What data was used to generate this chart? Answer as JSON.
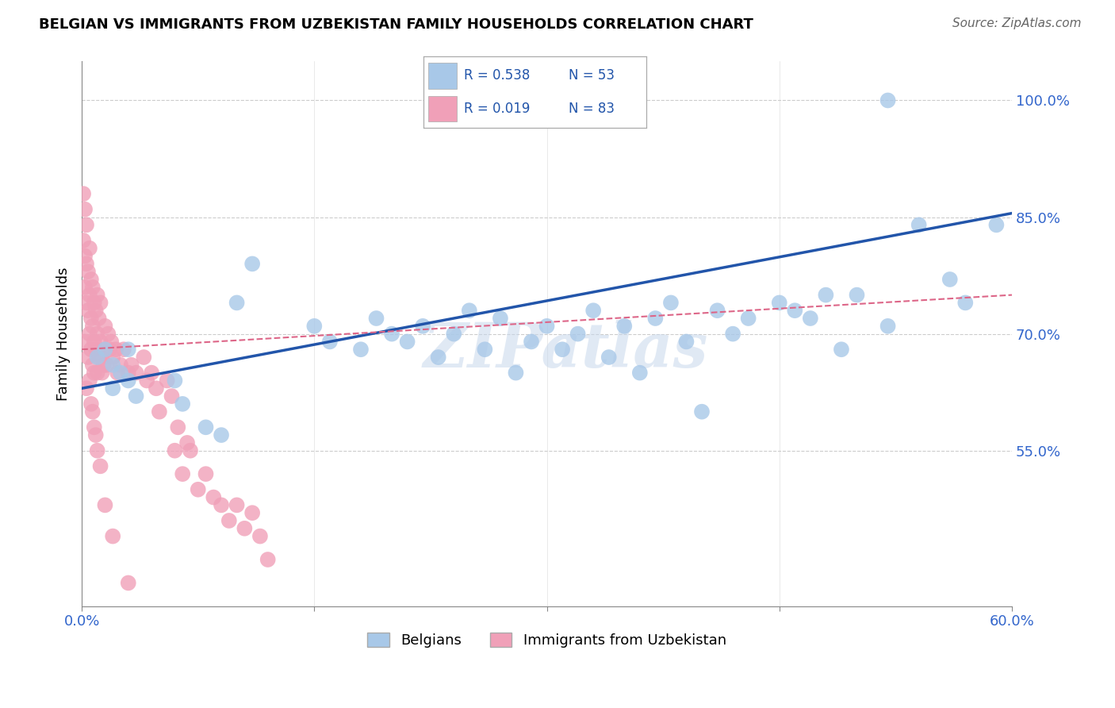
{
  "title": "BELGIAN VS IMMIGRANTS FROM UZBEKISTAN FAMILY HOUSEHOLDS CORRELATION CHART",
  "source": "Source: ZipAtlas.com",
  "ylabel": "Family Households",
  "xlim": [
    0.0,
    0.6
  ],
  "ylim": [
    0.35,
    1.05
  ],
  "y_ticks": [
    0.55,
    0.7,
    0.85,
    1.0
  ],
  "y_tick_labels": [
    "55.0%",
    "70.0%",
    "85.0%",
    "100.0%"
  ],
  "x_ticks": [
    0.0,
    0.15,
    0.3,
    0.45,
    0.6
  ],
  "x_tick_labels": [
    "0.0%",
    "",
    "",
    "",
    "60.0%"
  ],
  "legend_r1": "R = 0.538",
  "legend_n1": "N = 53",
  "legend_r2": "R = 0.019",
  "legend_n2": "N = 83",
  "blue_color": "#A8C8E8",
  "pink_color": "#F0A0B8",
  "line_blue": "#2255AA",
  "line_pink": "#DD6688",
  "watermark": "ZIPatlas",
  "bel_trend_x": [
    0.0,
    0.6
  ],
  "bel_trend_y": [
    0.63,
    0.855
  ],
  "uzb_trend_x": [
    0.0,
    0.6
  ],
  "uzb_trend_y": [
    0.68,
    0.75
  ],
  "belgians_x": [
    0.01,
    0.015,
    0.02,
    0.02,
    0.025,
    0.03,
    0.03,
    0.035,
    0.06,
    0.065,
    0.08,
    0.09,
    0.1,
    0.11,
    0.15,
    0.16,
    0.18,
    0.19,
    0.2,
    0.21,
    0.22,
    0.23,
    0.24,
    0.25,
    0.26,
    0.27,
    0.28,
    0.29,
    0.3,
    0.31,
    0.32,
    0.33,
    0.34,
    0.35,
    0.36,
    0.37,
    0.38,
    0.39,
    0.4,
    0.41,
    0.42,
    0.43,
    0.45,
    0.46,
    0.47,
    0.48,
    0.49,
    0.5,
    0.52,
    0.54,
    0.56,
    0.57,
    0.59
  ],
  "belgians_y": [
    0.67,
    0.68,
    0.63,
    0.66,
    0.65,
    0.64,
    0.68,
    0.62,
    0.64,
    0.61,
    0.58,
    0.57,
    0.74,
    0.79,
    0.71,
    0.69,
    0.68,
    0.72,
    0.7,
    0.69,
    0.71,
    0.67,
    0.7,
    0.73,
    0.68,
    0.72,
    0.65,
    0.69,
    0.71,
    0.68,
    0.7,
    0.73,
    0.67,
    0.71,
    0.65,
    0.72,
    0.74,
    0.69,
    0.6,
    0.73,
    0.7,
    0.72,
    0.74,
    0.73,
    0.72,
    0.75,
    0.68,
    0.75,
    0.71,
    0.84,
    0.77,
    0.74,
    0.84
  ],
  "uzbek_x": [
    0.001,
    0.001,
    0.002,
    0.002,
    0.002,
    0.003,
    0.003,
    0.003,
    0.004,
    0.004,
    0.005,
    0.005,
    0.005,
    0.006,
    0.006,
    0.006,
    0.007,
    0.007,
    0.007,
    0.008,
    0.008,
    0.008,
    0.009,
    0.009,
    0.01,
    0.01,
    0.01,
    0.011,
    0.011,
    0.012,
    0.012,
    0.013,
    0.013,
    0.014,
    0.015,
    0.015,
    0.016,
    0.017,
    0.018,
    0.019,
    0.02,
    0.022,
    0.023,
    0.025,
    0.027,
    0.03,
    0.032,
    0.035,
    0.04,
    0.042,
    0.045,
    0.048,
    0.05,
    0.055,
    0.058,
    0.06,
    0.062,
    0.065,
    0.068,
    0.07,
    0.075,
    0.08,
    0.085,
    0.09,
    0.095,
    0.1,
    0.105,
    0.11,
    0.115,
    0.12,
    0.002,
    0.003,
    0.004,
    0.005,
    0.006,
    0.007,
    0.008,
    0.009,
    0.01,
    0.012,
    0.015,
    0.02,
    0.03
  ],
  "uzbek_y": [
    0.88,
    0.82,
    0.86,
    0.8,
    0.76,
    0.84,
    0.79,
    0.74,
    0.78,
    0.73,
    0.81,
    0.75,
    0.7,
    0.77,
    0.72,
    0.68,
    0.76,
    0.71,
    0.66,
    0.74,
    0.69,
    0.65,
    0.73,
    0.68,
    0.75,
    0.7,
    0.65,
    0.72,
    0.67,
    0.74,
    0.69,
    0.67,
    0.65,
    0.66,
    0.71,
    0.68,
    0.66,
    0.7,
    0.68,
    0.69,
    0.67,
    0.68,
    0.65,
    0.66,
    0.68,
    0.65,
    0.66,
    0.65,
    0.67,
    0.64,
    0.65,
    0.63,
    0.6,
    0.64,
    0.62,
    0.55,
    0.58,
    0.52,
    0.56,
    0.55,
    0.5,
    0.52,
    0.49,
    0.48,
    0.46,
    0.48,
    0.45,
    0.47,
    0.44,
    0.41,
    0.69,
    0.63,
    0.67,
    0.64,
    0.61,
    0.6,
    0.58,
    0.57,
    0.55,
    0.53,
    0.48,
    0.44,
    0.38
  ]
}
